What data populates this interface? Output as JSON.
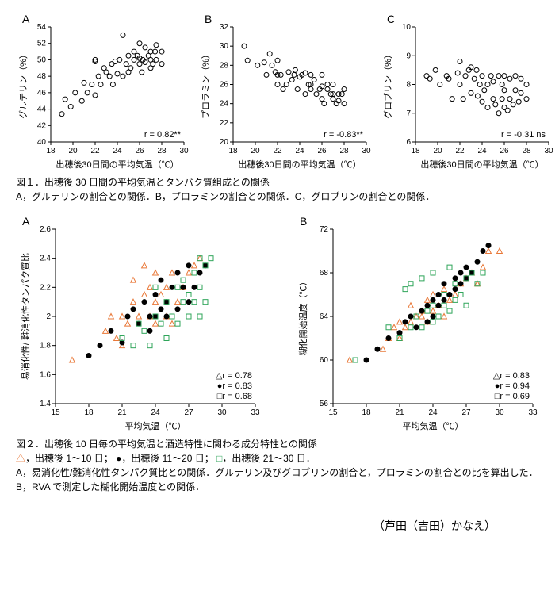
{
  "fig1": {
    "common_xlabel": "出穂後30日間の平均気温（℃）",
    "xlim": [
      18,
      30
    ],
    "xticks": [
      18,
      20,
      22,
      24,
      26,
      28,
      30
    ],
    "A": {
      "label": "A",
      "ylabel": "グルテリン（%）",
      "ylim": [
        40,
        54
      ],
      "yticks": [
        40,
        42,
        44,
        46,
        48,
        50,
        52,
        54
      ],
      "r": "r = 0.82**",
      "points": [
        [
          19.0,
          43.4
        ],
        [
          19.3,
          45.2
        ],
        [
          19.8,
          44.3
        ],
        [
          20.2,
          46.0
        ],
        [
          20.8,
          45.0
        ],
        [
          21.0,
          47.2
        ],
        [
          21.3,
          46.0
        ],
        [
          21.7,
          47.0
        ],
        [
          22.0,
          45.7
        ],
        [
          22.0,
          49.8
        ],
        [
          22.0,
          50.0
        ],
        [
          22.3,
          48.0
        ],
        [
          22.5,
          47.0
        ],
        [
          22.8,
          49.0
        ],
        [
          23.0,
          48.5
        ],
        [
          23.3,
          48.0
        ],
        [
          23.5,
          49.5
        ],
        [
          23.6,
          47.0
        ],
        [
          23.8,
          49.8
        ],
        [
          24.0,
          48.3
        ],
        [
          24.2,
          50.0
        ],
        [
          24.5,
          48.0
        ],
        [
          24.5,
          53.0
        ],
        [
          24.8,
          49.5
        ],
        [
          25.0,
          48.5
        ],
        [
          25.0,
          50.5
        ],
        [
          25.2,
          49.0
        ],
        [
          25.5,
          50.0
        ],
        [
          25.5,
          51.0
        ],
        [
          25.8,
          50.5
        ],
        [
          26.0,
          49.5
        ],
        [
          26.0,
          50.2
        ],
        [
          26.0,
          52.0
        ],
        [
          26.2,
          48.5
        ],
        [
          26.3,
          50.0
        ],
        [
          26.5,
          49.7
        ],
        [
          26.5,
          51.5
        ],
        [
          26.8,
          50.5
        ],
        [
          27.0,
          49.0
        ],
        [
          27.0,
          50.0
        ],
        [
          27.0,
          51.0
        ],
        [
          27.2,
          49.5
        ],
        [
          27.4,
          51.0
        ],
        [
          27.5,
          50.0
        ],
        [
          27.5,
          51.8
        ],
        [
          28.0,
          49.5
        ],
        [
          28.0,
          51.0
        ]
      ]
    },
    "B": {
      "label": "B",
      "ylabel": "プロラミン（%）",
      "ylim": [
        20,
        32
      ],
      "yticks": [
        20,
        22,
        24,
        26,
        28,
        30,
        32
      ],
      "r": "r = -0.83**",
      "points": [
        [
          19.0,
          30.0
        ],
        [
          19.3,
          28.5
        ],
        [
          20.2,
          28.0
        ],
        [
          20.8,
          28.3
        ],
        [
          21.0,
          27.0
        ],
        [
          21.3,
          29.2
        ],
        [
          21.5,
          28.0
        ],
        [
          21.8,
          27.3
        ],
        [
          22.0,
          26.0
        ],
        [
          22.0,
          27.0
        ],
        [
          22.0,
          28.5
        ],
        [
          22.3,
          27.0
        ],
        [
          22.5,
          25.5
        ],
        [
          22.8,
          26.0
        ],
        [
          23.0,
          27.3
        ],
        [
          23.3,
          26.5
        ],
        [
          23.5,
          27.0
        ],
        [
          23.6,
          27.5
        ],
        [
          23.8,
          25.5
        ],
        [
          24.0,
          26.8
        ],
        [
          24.2,
          27.0
        ],
        [
          24.5,
          25.0
        ],
        [
          24.5,
          27.2
        ],
        [
          24.8,
          26.0
        ],
        [
          25.0,
          25.5
        ],
        [
          25.0,
          26.0
        ],
        [
          25.0,
          27.0
        ],
        [
          25.3,
          26.5
        ],
        [
          25.5,
          25.0
        ],
        [
          25.8,
          25.5
        ],
        [
          26.0,
          24.5
        ],
        [
          26.0,
          25.8
        ],
        [
          26.0,
          27.0
        ],
        [
          26.2,
          24.0
        ],
        [
          26.5,
          25.5
        ],
        [
          26.5,
          26.0
        ],
        [
          26.8,
          25.0
        ],
        [
          27.0,
          24.5
        ],
        [
          27.0,
          25.0
        ],
        [
          27.0,
          26.0
        ],
        [
          27.3,
          24.0
        ],
        [
          27.5,
          25.0
        ],
        [
          27.5,
          24.3
        ],
        [
          27.8,
          25.0
        ],
        [
          28.0,
          24.0
        ],
        [
          28.0,
          25.5
        ]
      ]
    },
    "C": {
      "label": "C",
      "ylabel": "グロブリン（%）",
      "ylim": [
        6,
        10
      ],
      "yticks": [
        6,
        7,
        8,
        9,
        10
      ],
      "r": "r = -0.31 ns",
      "points": [
        [
          19.0,
          8.3
        ],
        [
          19.3,
          8.2
        ],
        [
          19.8,
          8.5
        ],
        [
          20.2,
          8.0
        ],
        [
          20.8,
          8.3
        ],
        [
          21.0,
          8.2
        ],
        [
          21.3,
          7.5
        ],
        [
          21.8,
          8.4
        ],
        [
          22.0,
          8.0
        ],
        [
          22.0,
          8.8
        ],
        [
          22.3,
          7.5
        ],
        [
          22.5,
          8.3
        ],
        [
          22.8,
          8.5
        ],
        [
          23.0,
          7.7
        ],
        [
          23.0,
          8.6
        ],
        [
          23.3,
          8.2
        ],
        [
          23.5,
          8.5
        ],
        [
          23.6,
          7.6
        ],
        [
          23.8,
          8.0
        ],
        [
          24.0,
          7.4
        ],
        [
          24.0,
          8.3
        ],
        [
          24.2,
          7.8
        ],
        [
          24.5,
          7.2
        ],
        [
          24.5,
          8.0
        ],
        [
          24.8,
          8.3
        ],
        [
          25.0,
          7.5
        ],
        [
          25.0,
          8.1
        ],
        [
          25.2,
          7.3
        ],
        [
          25.5,
          7.0
        ],
        [
          25.5,
          8.3
        ],
        [
          25.8,
          7.5
        ],
        [
          25.8,
          8.0
        ],
        [
          26.0,
          7.2
        ],
        [
          26.0,
          7.8
        ],
        [
          26.0,
          8.3
        ],
        [
          26.3,
          7.1
        ],
        [
          26.5,
          7.5
        ],
        [
          26.5,
          8.2
        ],
        [
          26.8,
          7.3
        ],
        [
          27.0,
          7.8
        ],
        [
          27.0,
          8.3
        ],
        [
          27.3,
          7.4
        ],
        [
          27.5,
          7.7
        ],
        [
          27.5,
          8.2
        ],
        [
          28.0,
          7.5
        ],
        [
          28.0,
          8.0
        ]
      ]
    },
    "caption_title": "図１．出穂後 30 日間の平均気温とタンパク質組成との関係",
    "caption_body": "A，グルテリンの割合との関係．B，プロラミンの割合との関係．C，グロブリンの割合との関係．"
  },
  "fig2": {
    "common_xlabel": "平均気温（℃）",
    "xlim": [
      15,
      33
    ],
    "xticks": [
      15,
      18,
      21,
      24,
      27,
      30,
      33
    ],
    "legend": [
      {
        "label": "r = 0.78",
        "labelB": "r = 0.83",
        "color": "#e97838",
        "marker": "triangle",
        "sym": "△"
      },
      {
        "label": "r = 0.83",
        "labelB": "r = 0.94",
        "color": "#000000",
        "marker": "filled",
        "sym": "●"
      },
      {
        "label": "r = 0.68",
        "labelB": "r = 0.69",
        "color": "#2fa55a",
        "marker": "square",
        "sym": "□"
      }
    ],
    "A": {
      "label": "A",
      "ylabel": "易消化性/ 難消化性タンパク質比",
      "ylim": [
        1.4,
        2.6
      ],
      "yticks": [
        1.4,
        1.6,
        1.8,
        2.0,
        2.2,
        2.4,
        2.6
      ],
      "tri": [
        [
          16.5,
          1.7
        ],
        [
          19.5,
          1.9
        ],
        [
          20.0,
          2.0
        ],
        [
          20.5,
          1.85
        ],
        [
          21.0,
          1.8
        ],
        [
          21.0,
          2.0
        ],
        [
          21.5,
          1.95
        ],
        [
          22.0,
          2.1
        ],
        [
          22.0,
          2.25
        ],
        [
          22.5,
          2.0
        ],
        [
          23.0,
          2.15
        ],
        [
          23.0,
          2.35
        ],
        [
          23.5,
          2.0
        ],
        [
          23.5,
          2.2
        ],
        [
          24.0,
          1.95
        ],
        [
          24.0,
          2.1
        ],
        [
          24.0,
          2.3
        ],
        [
          24.5,
          2.15
        ],
        [
          25.0,
          2.2
        ],
        [
          25.0,
          2.0
        ],
        [
          25.5,
          1.95
        ],
        [
          25.5,
          2.3
        ],
        [
          26.0,
          2.1
        ],
        [
          26.5,
          2.2
        ],
        [
          27.0,
          2.3
        ],
        [
          27.5,
          2.35
        ],
        [
          28.0,
          2.4
        ]
      ],
      "dot": [
        [
          18.0,
          1.73
        ],
        [
          19.0,
          1.8
        ],
        [
          20.0,
          1.9
        ],
        [
          21.0,
          1.82
        ],
        [
          21.5,
          2.0
        ],
        [
          22.0,
          2.05
        ],
        [
          22.5,
          1.95
        ],
        [
          23.0,
          2.1
        ],
        [
          23.5,
          1.9
        ],
        [
          23.5,
          2.0
        ],
        [
          24.0,
          2.0
        ],
        [
          24.0,
          2.15
        ],
        [
          24.5,
          2.05
        ],
        [
          24.5,
          2.25
        ],
        [
          25.0,
          2.0
        ],
        [
          25.0,
          2.1
        ],
        [
          25.5,
          2.2
        ],
        [
          26.0,
          2.05
        ],
        [
          26.0,
          2.3
        ],
        [
          26.5,
          2.2
        ],
        [
          27.0,
          2.1
        ],
        [
          27.0,
          2.35
        ],
        [
          27.5,
          2.2
        ],
        [
          28.0,
          2.3
        ],
        [
          28.5,
          2.35
        ]
      ],
      "sq": [
        [
          21.0,
          1.85
        ],
        [
          22.0,
          1.8
        ],
        [
          22.5,
          1.95
        ],
        [
          23.0,
          1.9
        ],
        [
          23.5,
          1.8
        ],
        [
          24.0,
          2.0
        ],
        [
          24.0,
          2.2
        ],
        [
          24.5,
          1.95
        ],
        [
          25.0,
          1.85
        ],
        [
          25.0,
          2.1
        ],
        [
          25.5,
          2.0
        ],
        [
          26.0,
          1.95
        ],
        [
          26.0,
          2.2
        ],
        [
          26.5,
          2.1
        ],
        [
          26.5,
          2.25
        ],
        [
          27.0,
          2.0
        ],
        [
          27.0,
          2.15
        ],
        [
          27.5,
          2.1
        ],
        [
          27.5,
          2.3
        ],
        [
          28.0,
          2.0
        ],
        [
          28.0,
          2.2
        ],
        [
          28.0,
          2.4
        ],
        [
          28.5,
          2.1
        ],
        [
          28.5,
          2.35
        ],
        [
          29.0,
          2.4
        ]
      ]
    },
    "B": {
      "label": "B",
      "ylabel": "糊化開始温度（℃）",
      "ylim": [
        56,
        72
      ],
      "yticks": [
        56,
        60,
        64,
        68,
        72
      ],
      "tri": [
        [
          16.5,
          60.0
        ],
        [
          19.5,
          61.0
        ],
        [
          20.0,
          62.0
        ],
        [
          20.5,
          63.0
        ],
        [
          21.0,
          62.0
        ],
        [
          21.0,
          63.5
        ],
        [
          21.5,
          63.0
        ],
        [
          22.0,
          63.5
        ],
        [
          22.0,
          65.0
        ],
        [
          22.5,
          64.0
        ],
        [
          23.0,
          64.0
        ],
        [
          23.0,
          64.5
        ],
        [
          23.5,
          63.5
        ],
        [
          23.5,
          65.5
        ],
        [
          24.0,
          64.5
        ],
        [
          24.0,
          66.0
        ],
        [
          24.5,
          65.0
        ],
        [
          25.0,
          64.0
        ],
        [
          25.0,
          66.5
        ],
        [
          25.5,
          65.5
        ],
        [
          26.0,
          66.0
        ],
        [
          26.5,
          67.0
        ],
        [
          27.0,
          67.5
        ],
        [
          27.5,
          68.0
        ],
        [
          28.0,
          67.0
        ],
        [
          28.5,
          68.5
        ],
        [
          29.0,
          70.0
        ],
        [
          30.0,
          70.0
        ]
      ],
      "dot": [
        [
          18.0,
          60.0
        ],
        [
          19.0,
          61.0
        ],
        [
          20.0,
          62.0
        ],
        [
          21.0,
          62.5
        ],
        [
          21.5,
          63.5
        ],
        [
          22.0,
          64.0
        ],
        [
          22.5,
          63.0
        ],
        [
          23.0,
          64.5
        ],
        [
          23.5,
          63.5
        ],
        [
          23.5,
          65.0
        ],
        [
          24.0,
          64.0
        ],
        [
          24.0,
          65.5
        ],
        [
          24.5,
          65.0
        ],
        [
          24.5,
          66.0
        ],
        [
          25.0,
          65.5
        ],
        [
          25.0,
          67.0
        ],
        [
          25.5,
          66.0
        ],
        [
          26.0,
          66.5
        ],
        [
          26.0,
          67.5
        ],
        [
          26.5,
          67.0
        ],
        [
          26.5,
          68.0
        ],
        [
          27.0,
          67.5
        ],
        [
          27.0,
          68.5
        ],
        [
          27.5,
          68.0
        ],
        [
          28.0,
          69.0
        ],
        [
          28.5,
          70.0
        ],
        [
          29.0,
          70.5
        ]
      ],
      "sq": [
        [
          17.0,
          60.0
        ],
        [
          20.0,
          63.0
        ],
        [
          21.0,
          62.0
        ],
        [
          21.5,
          66.5
        ],
        [
          22.0,
          63.0
        ],
        [
          22.0,
          67.0
        ],
        [
          22.5,
          64.0
        ],
        [
          23.0,
          63.0
        ],
        [
          23.0,
          67.5
        ],
        [
          23.5,
          64.5
        ],
        [
          24.0,
          63.5
        ],
        [
          24.0,
          65.0
        ],
        [
          24.0,
          68.0
        ],
        [
          24.5,
          64.0
        ],
        [
          25.0,
          65.0
        ],
        [
          25.0,
          66.0
        ],
        [
          25.5,
          64.5
        ],
        [
          25.5,
          68.5
        ],
        [
          26.0,
          65.5
        ],
        [
          26.0,
          67.0
        ],
        [
          26.5,
          66.0
        ],
        [
          27.0,
          65.0
        ],
        [
          27.0,
          67.5
        ],
        [
          27.5,
          68.0
        ],
        [
          28.0,
          67.0
        ],
        [
          28.5,
          68.0
        ]
      ]
    },
    "caption_title": "図２．出穂後 10 日毎の平均気温と酒造特性に関わる成分特性との関係",
    "caption_body1": "，出穂後 1～10 日；",
    "caption_body2": "，出穂後 11～20 日；",
    "caption_body3": "，出穂後 21～30 日．",
    "caption_body4": "A，易消化性/難消化性タンパク質比との関係．グルテリン及びグロブリンの割合と，プロラミンの割合との比を算出した．B，RVA で測定した糊化開始温度との関係．",
    "sym_tri": "△",
    "sym_dot": "●",
    "sym_sq": "□"
  },
  "author": "（芦田（吉田）かなえ）"
}
